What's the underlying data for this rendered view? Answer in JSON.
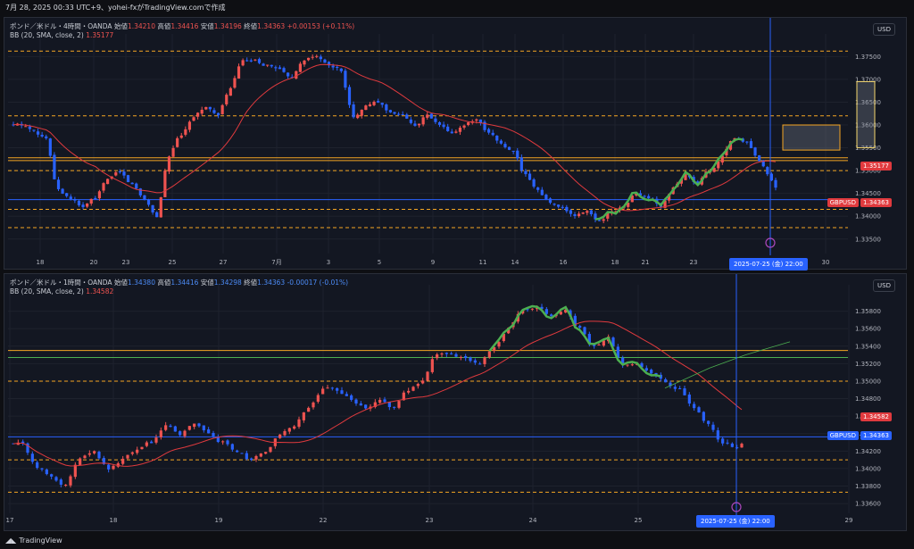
{
  "header": {
    "text": "7月 28, 2025 00:33 UTC+9、yohei-fxがTradingView.comで作成"
  },
  "footer": {
    "brand": "TradingView"
  },
  "colors": {
    "up": "#ef5350",
    "down": "#2962ff",
    "bb": "#e03a3e",
    "green": "#4caf50",
    "orange": "#f5a623",
    "grid": "#1e222d"
  },
  "charts": [
    {
      "legend": {
        "title": "ポンド／米ドル・4時間・OANDA",
        "open_label": "始値",
        "open": "1.34210",
        "high_label": "高値",
        "high": "1.34416",
        "low_label": "安値",
        "low": "1.34196",
        "close_label": "終値",
        "close": "1.34363",
        "change": "+0.00153 (+0.11%)",
        "bb_label": "BB (20, SMA, close, 2)",
        "bb_value": "1.35177"
      },
      "currency": "USD",
      "symbol_label": "GBPUSD",
      "last_price": "1.34363",
      "bb_price": "1.35177",
      "date_label": "2025-07-25 (金)   22:00",
      "y_ticks": [
        "1.37500",
        "1.37000",
        "1.36500",
        "1.36000",
        "1.35500",
        "1.35000",
        "1.34500",
        "1.34000",
        "1.33500"
      ],
      "x_ticks": [
        "18",
        "20",
        "23",
        "25",
        "27",
        "7月",
        "3",
        "5",
        "9",
        "11",
        "14",
        "16",
        "18",
        "21",
        "23",
        "30"
      ]
    },
    {
      "legend": {
        "title": "ポンド／米ドル・1時間・OANDA",
        "open_label": "始値",
        "open": "1.34380",
        "high_label": "高値",
        "high": "1.34416",
        "low_label": "安値",
        "low": "1.34298",
        "close_label": "終値",
        "close": "1.34363",
        "change": "-0.00017 (-0.01%)",
        "bb_label": "BB (20, SMA, close, 2)",
        "bb_value": "1.34582"
      },
      "currency": "USD",
      "symbol_label": "GBPUSD",
      "last_price": "1.34363",
      "bb_price": "1.34582",
      "date_label": "2025-07-25 (金)   22:00",
      "y_ticks": [
        "1.35800",
        "1.35600",
        "1.35400",
        "1.35200",
        "1.35000",
        "1.34800",
        "1.34600",
        "1.34400",
        "1.34200",
        "1.34000",
        "1.33800",
        "1.33600"
      ],
      "x_ticks": [
        "17",
        "18",
        "19",
        "22",
        "23",
        "24",
        "25",
        "29"
      ]
    }
  ],
  "chart_data": [
    {
      "type": "candlestick",
      "title": "ポンド／米ドル・4時間・OANDA",
      "ylim": [
        1.333,
        1.378
      ],
      "levels": {
        "dashed_orange": [
          1.3762,
          1.362,
          1.35,
          1.3415,
          1.3375
        ],
        "solid_orange": [
          1.3528,
          1.3522
        ],
        "current": 1.34363
      },
      "overlays": [
        "BB middle (20 SMA)",
        "green wave path",
        "orange box 1.3550-1.3695",
        "orange box 1.3545-1.3600"
      ],
      "close_path": [
        1.36,
        1.359,
        1.357,
        1.346,
        1.344,
        1.342,
        1.344,
        1.348,
        1.35,
        1.347,
        1.344,
        1.34,
        1.353,
        1.358,
        1.362,
        1.364,
        1.362,
        1.368,
        1.374,
        1.374,
        1.373,
        1.372,
        1.37,
        1.374,
        1.375,
        1.373,
        1.372,
        1.362,
        1.364,
        1.365,
        1.363,
        1.362,
        1.36,
        1.362,
        1.36,
        1.358,
        1.36,
        1.361,
        1.358,
        1.356,
        1.354,
        1.349,
        1.346,
        1.343,
        1.342,
        1.34,
        1.341,
        1.339,
        1.341,
        1.342,
        1.345,
        1.344,
        1.342,
        1.346,
        1.349,
        1.347,
        1.35,
        1.353,
        1.357,
        1.356,
        1.352,
        1.348,
        1.3436
      ]
    },
    {
      "type": "candlestick",
      "title": "ポンド／米ドル・1時間・OANDA",
      "ylim": [
        1.3355,
        1.36
      ],
      "levels": {
        "dashed_orange": [
          1.35,
          1.341,
          1.3373
        ],
        "solid_orange": [
          1.3535
        ],
        "solid_green": [
          1.3527
        ],
        "current": 1.34363
      },
      "overlays": [
        "BB middle (20 SMA)",
        "green wave path",
        "thin green projection"
      ],
      "close_path": [
        1.343,
        1.34,
        1.339,
        1.338,
        1.341,
        1.342,
        1.34,
        1.341,
        1.342,
        1.343,
        1.345,
        1.344,
        1.345,
        1.344,
        1.343,
        1.342,
        1.341,
        1.342,
        1.344,
        1.345,
        1.347,
        1.349,
        1.349,
        1.348,
        1.347,
        1.348,
        1.347,
        1.349,
        1.35,
        1.353,
        1.353,
        1.3525,
        1.352,
        1.354,
        1.356,
        1.358,
        1.3585,
        1.3575,
        1.358,
        1.356,
        1.354,
        1.355,
        1.352,
        1.352,
        1.351,
        1.35,
        1.349,
        1.347,
        1.345,
        1.343,
        1.3425,
        1.3436
      ]
    }
  ]
}
